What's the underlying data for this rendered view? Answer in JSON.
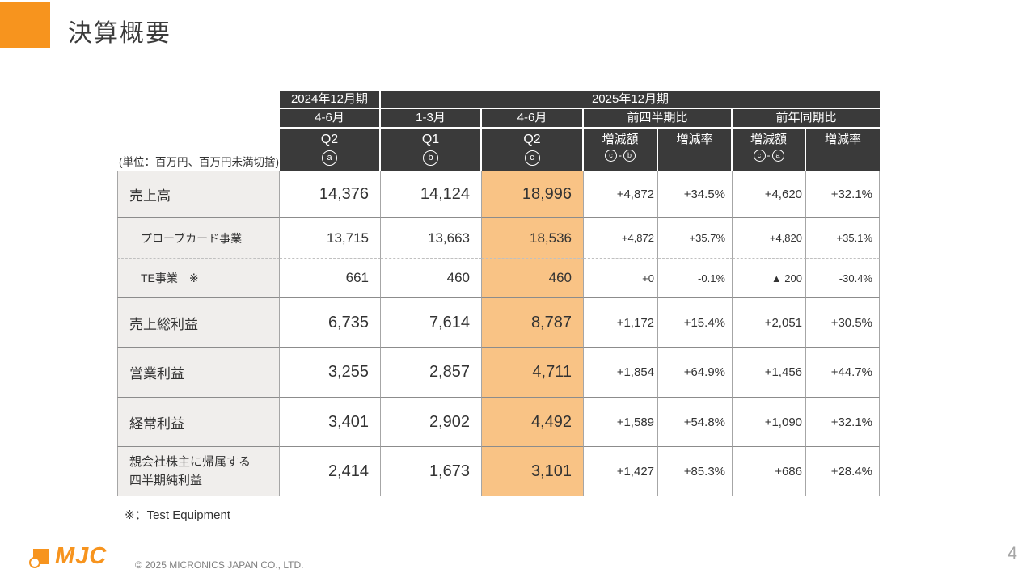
{
  "slide": {
    "title": "決算概要",
    "unit_note": "(単位：百万円、百万円未満切捨)",
    "footnote": "※：Test Equipment",
    "logo_text": "MJC",
    "copyright": "© 2025 MICRONICS JAPAN CO., LTD.",
    "page_number": "4"
  },
  "colors": {
    "accent_orange": "#F7941E",
    "header_bg": "#3A3A3A",
    "highlight_cell": "#F9C385",
    "label_cell_bg": "#F0EEEC"
  },
  "table": {
    "header": {
      "period_2024": "2024年12月期",
      "period_2025": "2025年12月期",
      "q_2024_q2": "4-6月",
      "q_2025_q1": "1-3月",
      "q_2025_q2": "4-6月",
      "comp_prev_quarter": "前四半期比",
      "comp_prev_year": "前年同期比",
      "col_a": {
        "label": "Q2",
        "letter": "a"
      },
      "col_b": {
        "label": "Q1",
        "letter": "b"
      },
      "col_c": {
        "label": "Q2",
        "letter": "c"
      },
      "diff_amount": "増減額",
      "diff_rate": "増減率",
      "formula_prev": {
        "left": "c",
        "sep": "-",
        "right": "b"
      },
      "formula_year": {
        "left": "c",
        "sep": "-",
        "right": "a"
      }
    },
    "rows": [
      {
        "label": "売上高",
        "a": "14,376",
        "b": "14,124",
        "c": "18,996",
        "pq_amt": "+4,872",
        "pq_rate": "+34.5%",
        "yy_amt": "+4,620",
        "yy_rate": "+32.1%"
      },
      {
        "label": "プローブカード事業",
        "a": "13,715",
        "b": "13,663",
        "c": "18,536",
        "pq_amt": "+4,872",
        "pq_rate": "+35.7%",
        "yy_amt": "+4,820",
        "yy_rate": "+35.1%"
      },
      {
        "label": "TE事業　※",
        "a": "661",
        "b": "460",
        "c": "460",
        "pq_amt": "+0",
        "pq_rate": "-0.1%",
        "yy_amt": "▲ 200",
        "yy_rate": "-30.4%"
      },
      {
        "label": "売上総利益",
        "a": "6,735",
        "b": "7,614",
        "c": "8,787",
        "pq_amt": "+1,172",
        "pq_rate": "+15.4%",
        "yy_amt": "+2,051",
        "yy_rate": "+30.5%"
      },
      {
        "label": "営業利益",
        "a": "3,255",
        "b": "2,857",
        "c": "4,711",
        "pq_amt": "+1,854",
        "pq_rate": "+64.9%",
        "yy_amt": "+1,456",
        "yy_rate": "+44.7%"
      },
      {
        "label": "経常利益",
        "a": "3,401",
        "b": "2,902",
        "c": "4,492",
        "pq_amt": "+1,589",
        "pq_rate": "+54.8%",
        "yy_amt": "+1,090",
        "yy_rate": "+32.1%"
      },
      {
        "label": "親会社株主に帰属する\n四半期純利益",
        "a": "2,414",
        "b": "1,673",
        "c": "3,101",
        "pq_amt": "+1,427",
        "pq_rate": "+85.3%",
        "yy_amt": "+686",
        "yy_rate": "+28.4%"
      }
    ]
  }
}
